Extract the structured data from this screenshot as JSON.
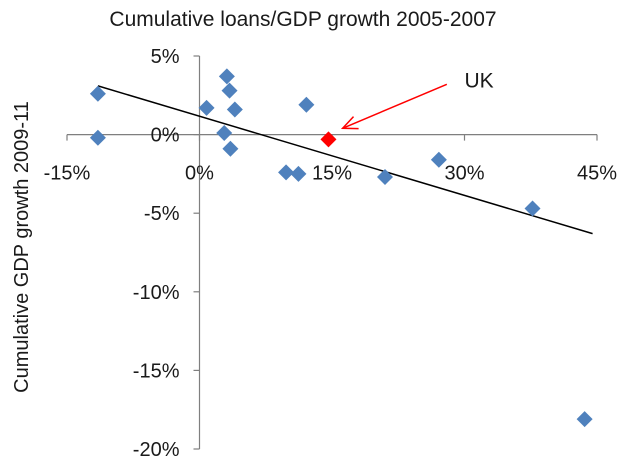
{
  "chart_data": {
    "type": "scatter",
    "title": "Cumulative loans/GDP growth 2005-2007",
    "ylabel": "Cumulative GDP growth 2009-11",
    "xlabel": "",
    "x_ticks": [
      "-15%",
      "0%",
      "15%",
      "30%",
      "45%"
    ],
    "y_ticks": [
      "5%",
      "0%",
      "-5%",
      "-10%",
      "-15%",
      "-20%"
    ],
    "xlim": [
      -15,
      45
    ],
    "ylim": [
      -20,
      5
    ],
    "grid": false,
    "legend": "none",
    "series": [
      {
        "color": "#4f81bd",
        "marker": "diamond",
        "points": [
          {
            "x": -11.5,
            "y": 2.6
          },
          {
            "x": -11.5,
            "y": -0.2
          },
          {
            "x": 0.8,
            "y": 1.7
          },
          {
            "x": 2.8,
            "y": 0.1
          },
          {
            "x": 3.1,
            "y": 3.7
          },
          {
            "x": 3.4,
            "y": 2.8
          },
          {
            "x": 3.5,
            "y": -0.9
          },
          {
            "x": 4.0,
            "y": 1.6
          },
          {
            "x": 9.8,
            "y": -2.4
          },
          {
            "x": 11.2,
            "y": -2.5
          },
          {
            "x": 12.1,
            "y": 1.9
          },
          {
            "x": 21.0,
            "y": -2.7
          },
          {
            "x": 27.1,
            "y": -1.6
          },
          {
            "x": 37.7,
            "y": -4.7
          },
          {
            "x": 43.6,
            "y": -18.1
          }
        ]
      },
      {
        "color": "#ff0000",
        "marker": "diamond",
        "points": [
          {
            "x": 14.6,
            "y": -0.3
          }
        ]
      }
    ],
    "trendline": {
      "color": "#000000",
      "x": [
        -11.5,
        44.5
      ],
      "y": [
        3.1,
        -6.3
      ]
    },
    "annotation": {
      "text": "UK",
      "color": "#ff0000",
      "text_x": 30.0,
      "text_y": 3.0,
      "arrow_from": [
        28.0,
        3.2
      ],
      "arrow_to": [
        16.2,
        0.4
      ]
    }
  }
}
